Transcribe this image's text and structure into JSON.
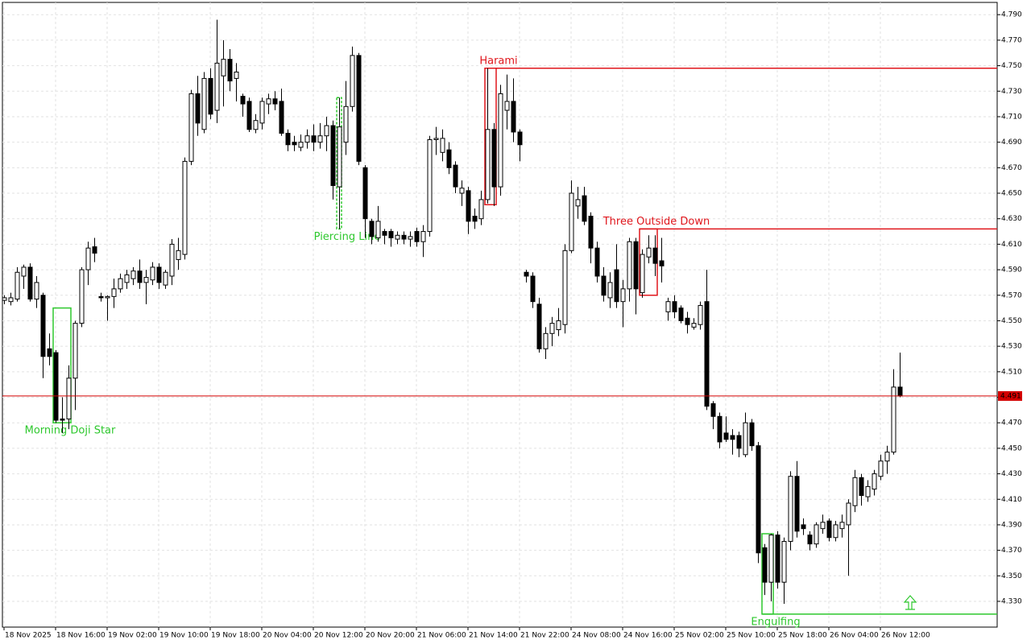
{
  "chart_data": {
    "type": "candlestick",
    "ylim": [
      4.3098,
      4.7996
    ],
    "xlim": [
      0,
      140
    ],
    "yticks": [
      {
        "value": 4.33,
        "label": "4.330"
      },
      {
        "value": 4.35,
        "label": "4.350"
      },
      {
        "value": 4.37,
        "label": "4.370"
      },
      {
        "value": 4.39,
        "label": "4.390"
      },
      {
        "value": 4.41,
        "label": "4.410"
      },
      {
        "value": 4.43,
        "label": "4.430"
      },
      {
        "value": 4.45,
        "label": "4.450"
      },
      {
        "value": 4.47,
        "label": "4.470"
      },
      {
        "value": 4.49,
        "label": "4.490"
      },
      {
        "value": 4.51,
        "label": "4.510"
      },
      {
        "value": 4.53,
        "label": "4.530"
      },
      {
        "value": 4.55,
        "label": "4.550"
      },
      {
        "value": 4.57,
        "label": "4.570"
      },
      {
        "value": 4.59,
        "label": "4.590"
      },
      {
        "value": 4.61,
        "label": "4.610"
      },
      {
        "value": 4.63,
        "label": "4.630"
      },
      {
        "value": 4.65,
        "label": "4.650"
      },
      {
        "value": 4.67,
        "label": "4.670"
      },
      {
        "value": 4.69,
        "label": "4.690"
      },
      {
        "value": 4.71,
        "label": "4.710"
      },
      {
        "value": 4.73,
        "label": "4.730"
      },
      {
        "value": 4.75,
        "label": "4.750"
      },
      {
        "value": 4.77,
        "label": "4.770"
      },
      {
        "value": 4.79,
        "label": "4.790"
      }
    ],
    "xticks": [
      {
        "value": 0,
        "label": "18 Nov 2025"
      },
      {
        "value": 8,
        "label": "18 Nov 16:00"
      },
      {
        "value": 16,
        "label": "19 Nov 02:00"
      },
      {
        "value": 24,
        "label": "19 Nov 10:00"
      },
      {
        "value": 32,
        "label": "19 Nov 18:00"
      },
      {
        "value": 40,
        "label": "20 Nov 04:00"
      },
      {
        "value": 48,
        "label": "20 Nov 12:00"
      },
      {
        "value": 56,
        "label": "20 Nov 20:00"
      },
      {
        "value": 64,
        "label": "21 Nov 06:00"
      },
      {
        "value": 72,
        "label": "21 Nov 14:00"
      },
      {
        "value": 80,
        "label": "21 Nov 22:00"
      },
      {
        "value": 88,
        "label": "24 Nov 08:00"
      },
      {
        "value": 96,
        "label": "24 Nov 16:00"
      },
      {
        "value": 104,
        "label": "25 Nov 02:00"
      },
      {
        "value": 112,
        "label": "25 Nov 10:00"
      },
      {
        "value": 120,
        "label": "25 Nov 18:00"
      },
      {
        "value": 128,
        "label": "26 Nov 04:00"
      },
      {
        "value": 136,
        "label": "26 Nov 12:00"
      }
    ],
    "grid": true,
    "up_color": "#ffffff",
    "down_color": "#000000",
    "last_price": 4.491,
    "last_price_color": "#d40000",
    "open": [
      4.566,
      4.565,
      4.567,
      4.585,
      4.592,
      4.567,
      4.57,
      4.528,
      4.525,
      4.473,
      4.473,
      4.505,
      4.548,
      4.59,
      4.608,
      4.569,
      4.568,
      4.569,
      4.575,
      4.58,
      4.583,
      4.589,
      4.58,
      4.582,
      4.592,
      4.578,
      4.585,
      4.598,
      4.602,
      4.675,
      4.728,
      4.7,
      4.74,
      4.715,
      4.742,
      4.755,
      4.74,
      4.726,
      4.722,
      4.7,
      4.705,
      4.72,
      4.724,
      4.722,
      4.697,
      4.69,
      4.686,
      4.69,
      4.695,
      4.69,
      4.695,
      4.703,
      4.655,
      4.69,
      4.718,
      4.758,
      4.67,
      4.628,
      4.615,
      4.62,
      4.62,
      4.614,
      4.617,
      4.614,
      4.62,
      4.612,
      4.62,
      4.692,
      4.682,
      4.684,
      4.672,
      4.65,
      4.652,
      4.632,
      4.63,
      4.645,
      4.7,
      4.655,
      4.715,
      4.722,
      4.698,
      4.588,
      4.585,
      4.563,
      4.528,
      4.54,
      4.543,
      4.547,
      4.605,
      4.64,
      4.648,
      4.632,
      4.607,
      4.585,
      4.568,
      4.59,
      4.565,
      4.575,
      4.612,
      4.572,
      4.6,
      4.607,
      4.597,
      4.557,
      4.565,
      4.56,
      4.552,
      4.545,
      4.547,
      4.565,
      4.485,
      4.475,
      4.462,
      4.46,
      4.46,
      4.445,
      4.47,
      4.452,
      4.372,
      4.345,
      4.382,
      4.345,
      4.377,
      4.428,
      4.39,
      4.382,
      4.375,
      4.387,
      4.393,
      4.38,
      4.387,
      4.39,
      4.405,
      4.427,
      4.412,
      4.418,
      4.428,
      4.44,
      4.447,
      4.498
    ],
    "high": [
      4.57,
      4.572,
      4.592,
      4.594,
      4.595,
      4.585,
      4.572,
      4.54,
      4.527,
      4.49,
      4.515,
      4.55,
      4.592,
      4.612,
      4.615,
      4.572,
      4.57,
      4.583,
      4.587,
      4.59,
      4.592,
      4.598,
      4.59,
      4.596,
      4.595,
      4.59,
      4.614,
      4.615,
      4.678,
      4.731,
      4.742,
      4.745,
      4.748,
      4.786,
      4.77,
      4.763,
      4.752,
      4.728,
      4.725,
      4.712,
      4.725,
      4.728,
      4.73,
      4.732,
      4.7,
      4.695,
      4.696,
      4.7,
      4.704,
      4.705,
      4.71,
      4.707,
      4.725,
      4.738,
      4.765,
      4.76,
      4.672,
      4.63,
      4.64,
      4.622,
      4.622,
      4.62,
      4.62,
      4.62,
      4.623,
      4.625,
      4.695,
      4.702,
      4.7,
      4.69,
      4.675,
      4.66,
      4.655,
      4.638,
      4.652,
      4.748,
      4.705,
      4.735,
      4.743,
      4.74,
      4.7,
      4.59,
      4.588,
      4.568,
      4.545,
      4.553,
      4.56,
      4.61,
      4.66,
      4.655,
      4.655,
      4.635,
      4.612,
      4.592,
      4.588,
      4.61,
      4.582,
      4.615,
      4.615,
      4.606,
      4.617,
      4.617,
      4.615,
      4.568,
      4.57,
      4.562,
      4.557,
      4.552,
      4.565,
      4.59,
      4.487,
      4.478,
      4.475,
      4.465,
      4.463,
      4.478,
      4.473,
      4.455,
      4.375,
      4.383,
      4.385,
      4.38,
      4.432,
      4.44,
      4.395,
      4.385,
      4.392,
      4.398,
      4.395,
      4.393,
      4.398,
      4.41,
      4.433,
      4.43,
      4.425,
      4.433,
      4.445,
      4.452,
      4.512,
      4.525
    ],
    "low": [
      4.563,
      4.562,
      4.565,
      4.575,
      4.565,
      4.56,
      4.505,
      4.515,
      4.47,
      4.462,
      4.465,
      4.48,
      4.545,
      4.578,
      4.596,
      4.565,
      4.55,
      4.56,
      4.572,
      4.575,
      4.578,
      4.575,
      4.563,
      4.578,
      4.575,
      4.575,
      4.578,
      4.59,
      4.598,
      4.672,
      4.695,
      4.697,
      4.708,
      4.705,
      4.718,
      4.73,
      4.722,
      4.71,
      4.698,
      4.697,
      4.7,
      4.712,
      4.715,
      4.695,
      4.683,
      4.683,
      4.683,
      4.685,
      4.683,
      4.685,
      4.683,
      4.645,
      4.622,
      4.68,
      4.714,
      4.672,
      4.615,
      4.61,
      4.612,
      4.61,
      4.608,
      4.61,
      4.61,
      4.608,
      4.608,
      4.6,
      4.616,
      4.68,
      4.675,
      4.665,
      4.65,
      4.64,
      4.618,
      4.622,
      4.625,
      4.642,
      4.64,
      4.648,
      4.7,
      4.69,
      4.675,
      4.58,
      4.56,
      4.525,
      4.52,
      4.53,
      4.538,
      4.54,
      4.603,
      4.63,
      4.625,
      4.595,
      4.58,
      4.565,
      4.56,
      4.56,
      4.545,
      4.565,
      4.555,
      4.568,
      4.595,
      4.585,
      4.58,
      4.55,
      4.552,
      4.548,
      4.54,
      4.543,
      4.543,
      4.48,
      4.465,
      4.45,
      4.455,
      4.445,
      4.443,
      4.443,
      4.448,
      4.36,
      4.335,
      4.33,
      4.34,
      4.328,
      4.37,
      4.38,
      4.382,
      4.37,
      4.372,
      4.383,
      4.377,
      4.377,
      4.38,
      4.35,
      4.4,
      4.405,
      4.408,
      4.413,
      4.425,
      4.43,
      4.445,
      4.49
    ],
    "close": [
      4.568,
      4.568,
      4.588,
      4.592,
      4.567,
      4.58,
      4.522,
      4.522,
      4.472,
      4.472,
      4.505,
      4.548,
      4.59,
      4.607,
      4.603,
      4.568,
      4.569,
      4.575,
      4.583,
      4.586,
      4.589,
      4.58,
      4.584,
      4.592,
      4.58,
      4.588,
      4.61,
      4.605,
      4.675,
      4.728,
      4.705,
      4.74,
      4.712,
      4.752,
      4.755,
      4.738,
      4.745,
      4.72,
      4.7,
      4.707,
      4.722,
      4.724,
      4.72,
      4.697,
      4.688,
      4.688,
      4.69,
      4.695,
      4.69,
      4.695,
      4.703,
      4.656,
      4.702,
      4.718,
      4.758,
      4.675,
      4.63,
      4.616,
      4.628,
      4.617,
      4.615,
      4.617,
      4.614,
      4.616,
      4.612,
      4.62,
      4.692,
      4.693,
      4.693,
      4.67,
      4.655,
      4.654,
      4.628,
      4.628,
      4.645,
      4.7,
      4.655,
      4.728,
      4.722,
      4.698,
      4.688,
      4.585,
      4.565,
      4.528,
      4.54,
      4.548,
      4.55,
      4.605,
      4.65,
      4.645,
      4.628,
      4.607,
      4.585,
      4.57,
      4.58,
      4.565,
      4.575,
      4.612,
      4.575,
      4.602,
      4.607,
      4.595,
      4.593,
      4.565,
      4.557,
      4.55,
      4.547,
      4.548,
      4.562,
      4.483,
      4.475,
      4.455,
      4.457,
      4.457,
      4.45,
      4.47,
      4.452,
      4.368,
      4.345,
      4.382,
      4.345,
      4.377,
      4.428,
      4.385,
      4.387,
      4.375,
      4.39,
      4.392,
      4.38,
      4.39,
      4.392,
      4.407,
      4.427,
      4.413,
      4.42,
      4.43,
      4.44,
      4.447,
      4.498,
      4.491
    ],
    "patterns": [
      {
        "label": "Morning Doji Star",
        "color": "#2ec82e",
        "from": 8,
        "to": 10,
        "low": 4.47,
        "high": 4.56,
        "label_position": "below"
      },
      {
        "label": "Piercing Line",
        "color": "#2ec82e",
        "from": 52,
        "to": 52,
        "low": 4.622,
        "high": 4.725,
        "label_position": "below",
        "dashed": true
      },
      {
        "label": "Harami",
        "color": "#e0161c",
        "from": 75,
        "to": 76,
        "low": 4.641,
        "high": 4.748,
        "level": 4.748,
        "label_position": "above"
      },
      {
        "label": "Three Outside Down",
        "color": "#e0161c",
        "from": 99,
        "to": 101,
        "low": 4.57,
        "high": 4.622,
        "level": 4.622,
        "label_position": "above"
      },
      {
        "label": "Engulfing",
        "color": "#2ec82e",
        "from": 118,
        "to": 119,
        "low": 4.32,
        "high": 4.383,
        "level": 4.32,
        "label_position": "below"
      }
    ]
  }
}
